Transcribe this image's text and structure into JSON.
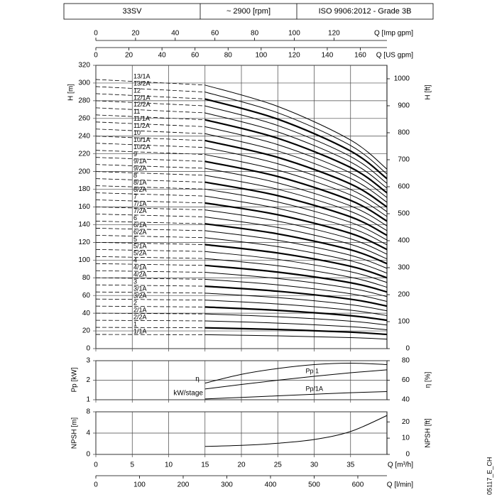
{
  "header": {
    "cells": [
      "33SV",
      "~ 2900 [rpm]",
      "ISO 9906:2012 - Grade 3B"
    ]
  },
  "code": "05117_E_CH",
  "chart_data": [
    {
      "type": "line",
      "ylabel": "H [m]",
      "y2label": "H [ft]",
      "color": "#000000",
      "grid": true,
      "xlim": [
        0,
        40
      ],
      "xticks": [
        0,
        5,
        10,
        15,
        20,
        25,
        30,
        35
      ],
      "ylim": [
        0,
        320
      ],
      "yticks": [
        0,
        20,
        40,
        60,
        80,
        100,
        120,
        140,
        160,
        180,
        200,
        220,
        240,
        260,
        280,
        300,
        320
      ],
      "y2lim": [
        0,
        1049.9
      ],
      "y2ticks": [
        0,
        100,
        200,
        300,
        400,
        500,
        600,
        700,
        800,
        900,
        1000
      ],
      "top_axes": [
        {
          "label": "Q [Imp gpm]",
          "lim": [
            0,
            146.7
          ],
          "ticks": [
            0,
            20,
            40,
            60,
            80,
            100,
            120
          ]
        },
        {
          "label": "Q [US gpm]",
          "lim": [
            0,
            176.1
          ],
          "ticks": [
            0,
            20,
            40,
            60,
            80,
            100,
            120,
            140,
            160
          ]
        }
      ],
      "solid_from": 15,
      "x": [
        0,
        15,
        25,
        35,
        40
      ],
      "series": [
        {
          "name": "13/1A",
          "values": [
            304,
            297.7,
            273.6,
            235.6,
            202.7
          ]
        },
        {
          "name": "13/2A",
          "values": [
            296,
            289.8,
            266.4,
            229.4,
            197.3
          ]
        },
        {
          "name": "12",
          "bold": true,
          "values": [
            288,
            282,
            259.2,
            223.2,
            192
          ]
        },
        {
          "name": "12/1A",
          "values": [
            280,
            274.2,
            252,
            217,
            186.7
          ]
        },
        {
          "name": "12/2A",
          "values": [
            272,
            266.3,
            244.8,
            210.8,
            181.3
          ]
        },
        {
          "name": "11",
          "bold": true,
          "values": [
            264,
            258.5,
            237.6,
            204.6,
            176
          ]
        },
        {
          "name": "11/1A",
          "values": [
            256,
            250.7,
            230.4,
            198.4,
            170.7
          ]
        },
        {
          "name": "11/2A",
          "values": [
            248,
            242.8,
            223.2,
            192.2,
            165.3
          ]
        },
        {
          "name": "10",
          "bold": true,
          "values": [
            240,
            235,
            216,
            186,
            160
          ]
        },
        {
          "name": "10/1A",
          "values": [
            232,
            227.2,
            208.8,
            179.8,
            154.7
          ]
        },
        {
          "name": "10/2A",
          "values": [
            224,
            219.3,
            201.6,
            173.6,
            149.3
          ]
        },
        {
          "name": "9",
          "bold": true,
          "values": [
            216,
            211.5,
            194.4,
            167.4,
            144
          ]
        },
        {
          "name": "9/1A",
          "values": [
            208,
            203.7,
            187.2,
            161.2,
            138.7
          ]
        },
        {
          "name": "9/2A",
          "values": [
            200,
            195.8,
            180,
            155,
            133.3
          ]
        },
        {
          "name": "8",
          "bold": true,
          "values": [
            192,
            188,
            172.8,
            148.8,
            128
          ]
        },
        {
          "name": "8/1A",
          "values": [
            184,
            180.2,
            165.6,
            142.6,
            122.7
          ]
        },
        {
          "name": "8/2A",
          "values": [
            176,
            172.3,
            158.4,
            136.4,
            117.3
          ]
        },
        {
          "name": "7",
          "bold": true,
          "values": [
            168,
            164.5,
            151.2,
            130.2,
            112
          ]
        },
        {
          "name": "7/1A",
          "values": [
            160,
            156.7,
            144,
            124,
            106.7
          ]
        },
        {
          "name": "7/2A",
          "values": [
            152,
            148.8,
            136.8,
            117.8,
            101.3
          ]
        },
        {
          "name": "6",
          "bold": true,
          "values": [
            144,
            141,
            129.6,
            111.6,
            96
          ]
        },
        {
          "name": "6/1A",
          "values": [
            136,
            133.2,
            122.4,
            105.4,
            90.7
          ]
        },
        {
          "name": "6/2A",
          "values": [
            128,
            125.3,
            115.2,
            99.2,
            85.3
          ]
        },
        {
          "name": "5",
          "bold": true,
          "values": [
            120,
            117.5,
            108,
            93,
            80
          ]
        },
        {
          "name": "5/1A",
          "values": [
            112,
            109.7,
            100.8,
            86.8,
            74.7
          ]
        },
        {
          "name": "5/2A",
          "values": [
            104,
            101.8,
            93.6,
            80.6,
            69.3
          ]
        },
        {
          "name": "4",
          "bold": true,
          "values": [
            96,
            94,
            86.4,
            74.4,
            64
          ]
        },
        {
          "name": "4/1A",
          "values": [
            88,
            86.2,
            79.2,
            68.2,
            58.7
          ]
        },
        {
          "name": "4/2A",
          "values": [
            80,
            78.3,
            72,
            62,
            53.3
          ]
        },
        {
          "name": "3",
          "bold": true,
          "values": [
            72,
            70.5,
            64.8,
            55.8,
            48
          ]
        },
        {
          "name": "3/1A",
          "values": [
            64,
            62.7,
            57.6,
            49.6,
            42.7
          ]
        },
        {
          "name": "3/2A",
          "values": [
            56,
            54.8,
            50.4,
            43.4,
            37.3
          ]
        },
        {
          "name": "2",
          "bold": true,
          "values": [
            48,
            47,
            43.2,
            37.2,
            32
          ]
        },
        {
          "name": "2/1A",
          "values": [
            40,
            39.2,
            36,
            31,
            26.7
          ]
        },
        {
          "name": "2/2A",
          "values": [
            32,
            31.3,
            28.8,
            24.8,
            21.3
          ]
        },
        {
          "name": "1",
          "bold": true,
          "values": [
            24,
            23.5,
            21.6,
            18.6,
            16
          ]
        },
        {
          "name": "1/1A",
          "values": [
            16,
            15.7,
            14.4,
            12.4,
            10.7
          ]
        }
      ]
    },
    {
      "type": "line",
      "ylabel": "Pp [kW]",
      "y2label": "η [%]",
      "color": "#000000",
      "grid": true,
      "annotations": [
        "kW/stage"
      ],
      "xlim": [
        0,
        40
      ],
      "xticks": [
        0,
        5,
        10,
        15,
        20,
        25,
        30,
        35
      ],
      "ylim": [
        1,
        3
      ],
      "yticks": [
        1,
        2,
        3
      ],
      "y2lim": [
        40,
        80
      ],
      "y2ticks": [
        40,
        60,
        80
      ],
      "x": [
        15,
        20,
        25,
        30,
        35,
        40
      ],
      "series": [
        {
          "name": "η",
          "axis": "y2",
          "values": [
            57,
            66,
            72,
            76,
            77.5,
            76
          ]
        },
        {
          "name": "Pp 1",
          "values": [
            1.55,
            1.78,
            2,
            2.2,
            2.38,
            2.53
          ]
        },
        {
          "name": "Pp/1A",
          "values": [
            1.04,
            1.12,
            1.2,
            1.28,
            1.36,
            1.42
          ]
        }
      ]
    },
    {
      "type": "line",
      "ylabel": "NPSH [m]",
      "y2label": "NPSH [ft]",
      "xlabel": "Q [m³/h]",
      "color": "#000000",
      "grid": true,
      "xlim": [
        0,
        40
      ],
      "xticks": [
        0,
        5,
        10,
        15,
        20,
        25,
        30,
        35
      ],
      "ylim": [
        0,
        8
      ],
      "yticks": [
        0,
        4,
        8
      ],
      "y2lim": [
        0,
        26.2
      ],
      "y2ticks": [
        0,
        10,
        20
      ],
      "bottom_axes": [
        {
          "label": "Q [l/min]",
          "lim": [
            0,
            666.7
          ],
          "ticks": [
            0,
            100,
            200,
            300,
            400,
            500,
            600
          ]
        }
      ],
      "x": [
        15,
        20,
        25,
        30,
        35,
        40
      ],
      "series": [
        {
          "values": [
            1.5,
            1.7,
            2.1,
            2.8,
            4.3,
            7.3
          ]
        }
      ]
    }
  ]
}
